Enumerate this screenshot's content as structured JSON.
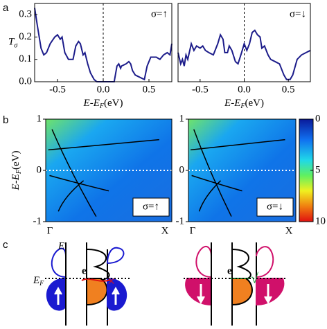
{
  "panels": [
    "a",
    "b",
    "c"
  ],
  "chart_data": [
    {
      "type": "line",
      "annotation": "σ=↑",
      "ylabel": "T",
      "ylabel_sub": "σ",
      "xlabel": [
        "E-E",
        "F",
        "(eV)"
      ],
      "xlim": [
        -0.75,
        0.75
      ],
      "ylim": [
        0,
        0.35
      ],
      "vline": 0,
      "xticks": [
        -0.5,
        {
          "value": 0,
          "label": "0.0"
        },
        0.5
      ],
      "yticks": [
        {
          "value": 0,
          "label": "0.0"
        },
        0.1,
        0.2,
        0.3
      ],
      "x": [
        -0.75,
        -0.72,
        -0.68,
        -0.65,
        -0.62,
        -0.58,
        -0.53,
        -0.5,
        -0.47,
        -0.45,
        -0.42,
        -0.38,
        -0.33,
        -0.3,
        -0.27,
        -0.25,
        -0.22,
        -0.2,
        -0.17,
        -0.14,
        -0.1,
        -0.07,
        0,
        0.12,
        0.15,
        0.17,
        0.19,
        0.2,
        0.25,
        0.28,
        0.3,
        0.32,
        0.35,
        0.4,
        0.45,
        0.48,
        0.52,
        0.58,
        0.62,
        0.66,
        0.7,
        0.73,
        0.75
      ],
      "series": [
        {
          "color": "#1c1c8a",
          "values": [
            0.33,
            0.25,
            0.15,
            0.12,
            0.13,
            0.17,
            0.2,
            0.21,
            0.19,
            0.2,
            0.13,
            0.1,
            0.1,
            0.16,
            0.18,
            0.17,
            0.12,
            0.13,
            0.08,
            0.04,
            0.01,
            0,
            0,
            0,
            0.07,
            0.08,
            0.06,
            0.07,
            0.08,
            0.09,
            0.08,
            0.05,
            0.03,
            0.02,
            0.01,
            0.07,
            0.11,
            0.11,
            0.1,
            0.12,
            0.13,
            0.12,
            0.17
          ]
        }
      ]
    },
    {
      "type": "line",
      "annotation": "σ=↓",
      "xlabel": [
        "E-E",
        "F",
        "(eV)"
      ],
      "xlim": [
        -0.75,
        0.75
      ],
      "ylim": [
        0,
        0.35
      ],
      "vline": 0,
      "xticks": [
        -0.5,
        {
          "value": 0,
          "label": "0.0"
        },
        0.5
      ],
      "x": [
        -0.75,
        -0.72,
        -0.7,
        -0.68,
        -0.66,
        -0.64,
        -0.6,
        -0.57,
        -0.54,
        -0.5,
        -0.47,
        -0.44,
        -0.4,
        -0.35,
        -0.3,
        -0.27,
        -0.24,
        -0.22,
        -0.19,
        -0.17,
        -0.14,
        -0.1,
        -0.07,
        -0.03,
        0,
        0.03,
        0.06,
        0.09,
        0.12,
        0.15,
        0.18,
        0.2,
        0.23,
        0.27,
        0.3,
        0.35,
        0.4,
        0.45,
        0.48,
        0.52,
        0.55,
        0.6,
        0.65,
        0.7,
        0.75
      ],
      "series": [
        {
          "color": "#1c1c8a",
          "values": [
            0.13,
            0.08,
            0.1,
            0.07,
            0.12,
            0.1,
            0.17,
            0.14,
            0.16,
            0.15,
            0.16,
            0.14,
            0.13,
            0.12,
            0.17,
            0.21,
            0.19,
            0.13,
            0.13,
            0.16,
            0.14,
            0.09,
            0.08,
            0.13,
            0.17,
            0.14,
            0.17,
            0.22,
            0.23,
            0.21,
            0.2,
            0.15,
            0.16,
            0.12,
            0.1,
            0.09,
            0.08,
            0.03,
            0.01,
            0.01,
            0.03,
            0.1,
            0.12,
            0.13,
            0.14
          ]
        }
      ]
    },
    {
      "type": "heatmap",
      "annotation": "σ=↑",
      "ylabel": [
        "E-E",
        "F",
        "(eV)"
      ],
      "ylim": [
        -1,
        1
      ],
      "yticks": [
        -1,
        0,
        1
      ],
      "hline": 0,
      "categories": [
        "Γ",
        "X"
      ]
    },
    {
      "type": "heatmap",
      "annotation": "σ=↓",
      "ylim": [
        -1,
        1
      ],
      "yticks": [
        -1,
        0,
        1
      ],
      "hline": 0,
      "categories": [
        "Γ",
        "X"
      ],
      "colorbar": {
        "lim": [
          0,
          10
        ],
        "ticks": [
          0,
          5,
          10
        ]
      }
    }
  ],
  "diagram": {
    "E": "E",
    "EF": [
      "E",
      "F"
    ],
    "e": [
      "e",
      "e"
    ],
    "cross": "×",
    "check": "√"
  }
}
